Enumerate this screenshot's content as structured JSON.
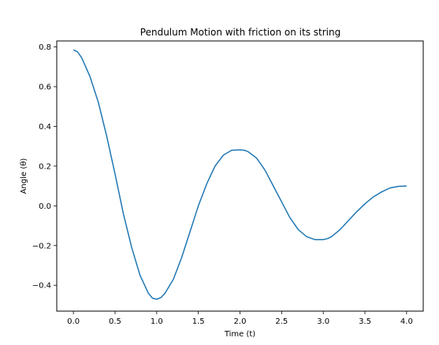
{
  "chart_data": {
    "type": "line",
    "title": "Pendulum Motion with friction on its string",
    "xlabel": "Time (t)",
    "ylabel": "Angle (θ)",
    "xlim": [
      -0.2,
      4.2
    ],
    "ylim": [
      -0.53,
      0.83
    ],
    "xticks": [
      0.0,
      0.5,
      1.0,
      1.5,
      2.0,
      2.5,
      3.0,
      3.5,
      4.0
    ],
    "xtick_labels": [
      "0.0",
      "0.5",
      "1.0",
      "1.5",
      "2.0",
      "2.5",
      "3.0",
      "3.5",
      "4.0"
    ],
    "yticks": [
      -0.4,
      -0.2,
      0.0,
      0.2,
      0.4,
      0.6,
      0.8
    ],
    "ytick_labels": [
      "−0.4",
      "−0.2",
      "0.0",
      "0.2",
      "0.4",
      "0.6",
      "0.8"
    ],
    "grid": false,
    "line_color": "#1f77b4",
    "series": [
      {
        "x": [
          0.0,
          0.05,
          0.1,
          0.2,
          0.3,
          0.4,
          0.5,
          0.6,
          0.7,
          0.8,
          0.9,
          0.95,
          1.0,
          1.05,
          1.1,
          1.2,
          1.3,
          1.4,
          1.5,
          1.6,
          1.7,
          1.8,
          1.9,
          2.0,
          2.05,
          2.1,
          2.2,
          2.3,
          2.4,
          2.5,
          2.6,
          2.7,
          2.8,
          2.9,
          3.0,
          3.05,
          3.1,
          3.2,
          3.3,
          3.4,
          3.5,
          3.6,
          3.7,
          3.8,
          3.9,
          4.0
        ],
        "y": [
          0.785,
          0.775,
          0.745,
          0.65,
          0.52,
          0.35,
          0.16,
          -0.04,
          -0.21,
          -0.35,
          -0.44,
          -0.465,
          -0.47,
          -0.462,
          -0.44,
          -0.37,
          -0.26,
          -0.13,
          0.0,
          0.11,
          0.2,
          0.255,
          0.28,
          0.282,
          0.28,
          0.272,
          0.24,
          0.18,
          0.1,
          0.02,
          -0.06,
          -0.12,
          -0.155,
          -0.17,
          -0.17,
          -0.165,
          -0.155,
          -0.12,
          -0.075,
          -0.03,
          0.01,
          0.045,
          0.07,
          0.09,
          0.098,
          0.1
        ]
      }
    ]
  }
}
